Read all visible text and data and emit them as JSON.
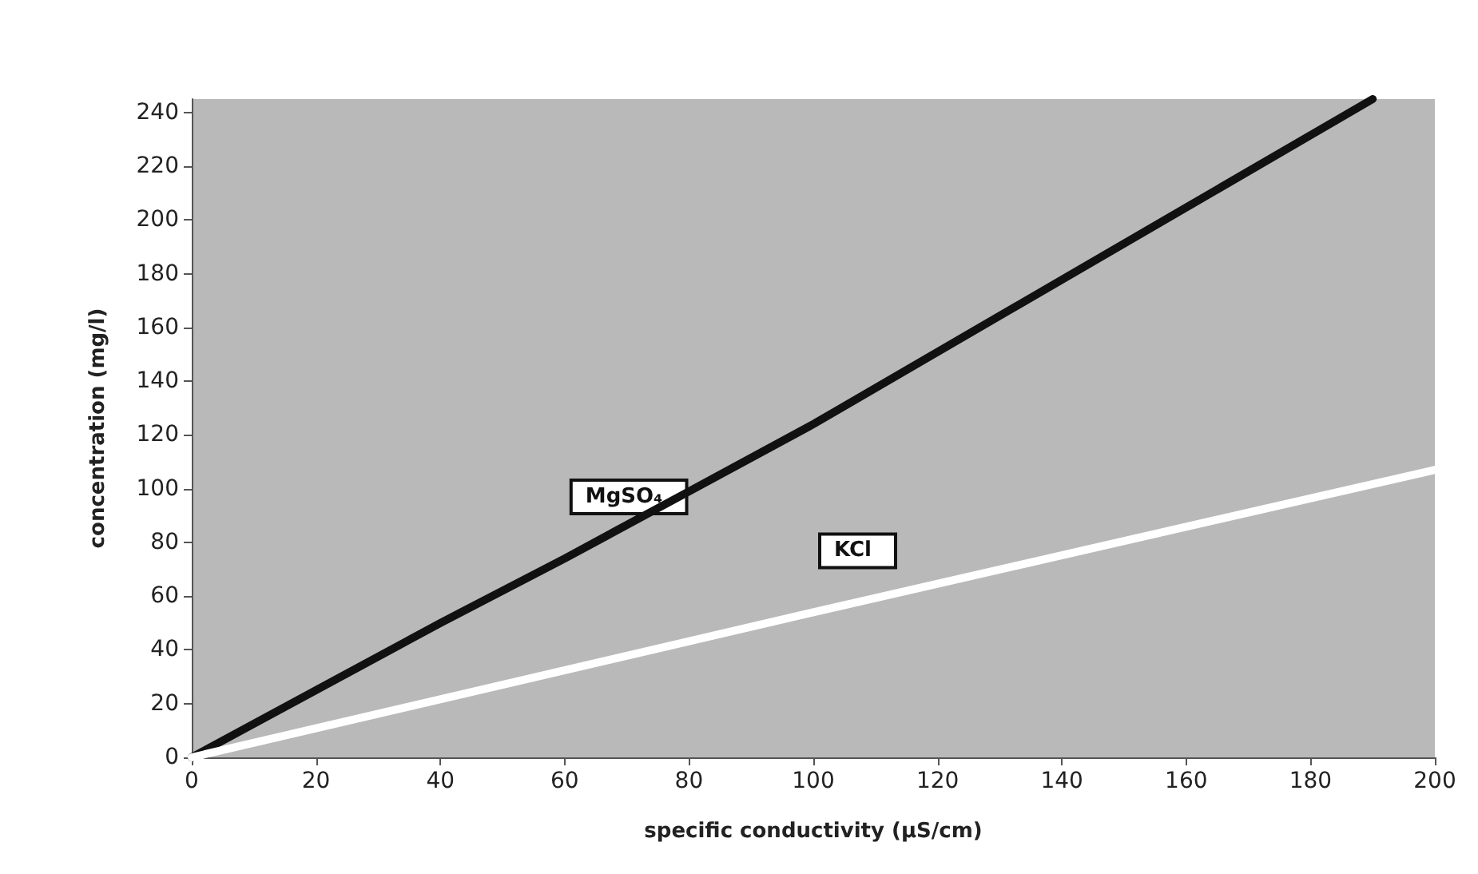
{
  "chart_data": {
    "type": "line",
    "xlabel": "specific conductivity (µS/cm)",
    "ylabel": "concentration (mg/l)",
    "xlim": [
      0,
      200
    ],
    "xticks": [
      0,
      20,
      40,
      60,
      80,
      100,
      120,
      140,
      160,
      180,
      200
    ],
    "ylim": [
      0,
      245
    ],
    "yticks": [
      0,
      20,
      40,
      60,
      80,
      100,
      120,
      140,
      160,
      180,
      200,
      220,
      240
    ],
    "grid": false,
    "legend": false,
    "marker": "none",
    "line_style": "solid",
    "series": [
      {
        "name": "MgSO₄",
        "color": "#111111",
        "x": [
          0,
          20,
          40,
          60,
          80,
          100,
          190
        ],
        "values": [
          0,
          25,
          50,
          74,
          99,
          124,
          245
        ]
      },
      {
        "name": "KCl",
        "color": "#ffffff",
        "x": [
          0,
          100,
          200
        ],
        "values": [
          0,
          54,
          107
        ]
      }
    ]
  }
}
